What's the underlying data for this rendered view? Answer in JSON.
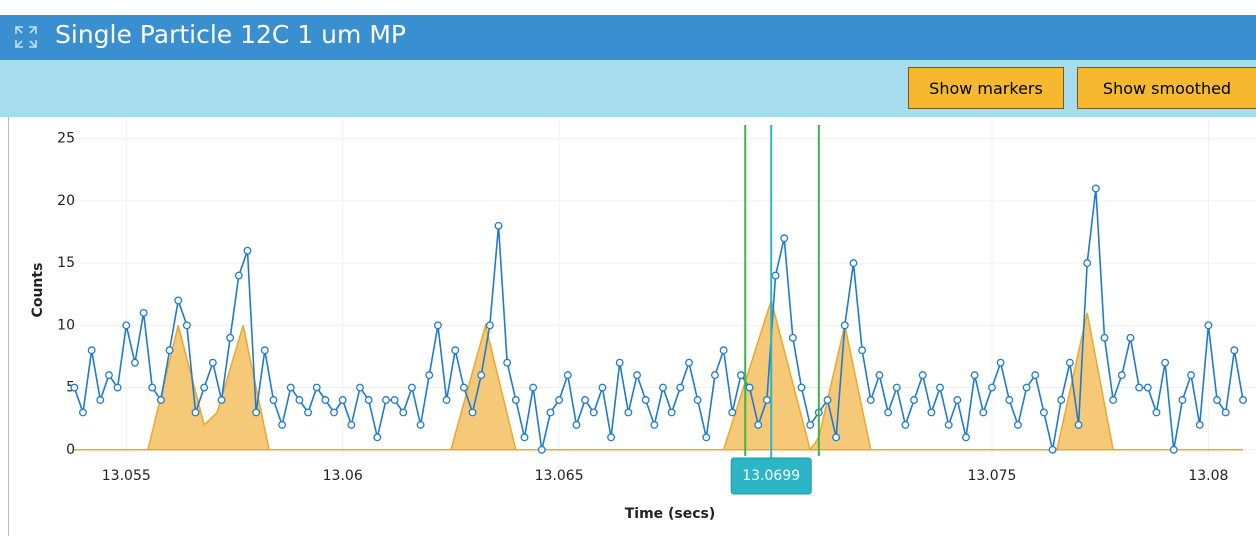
{
  "header": {
    "title": "Single Particle 12C 1 um MP"
  },
  "toolbar": {
    "buttons": [
      "Show markers",
      "Show smoothed"
    ]
  },
  "chart_data": {
    "type": "line",
    "x_label": "Time (secs)",
    "y_label": "Counts",
    "xlim": [
      13.0537,
      13.0811
    ],
    "xticks": [
      13.055,
      13.06,
      13.065,
      13.075,
      13.08
    ],
    "ylim": [
      -0.5,
      26.5
    ],
    "yticks": [
      0,
      5,
      10,
      15,
      20,
      25
    ],
    "grid": true,
    "series": [
      {
        "color": "#1f7bcf",
        "markers": true,
        "x": [
          13.0538,
          13.054,
          13.0542,
          13.0544,
          13.0546,
          13.0548,
          13.055,
          13.0552,
          13.0554,
          13.0556,
          13.0558,
          13.056,
          13.0562,
          13.0564,
          13.0566,
          13.0568,
          13.057,
          13.0572,
          13.0574,
          13.0576,
          13.0578,
          13.058,
          13.0582,
          13.0584,
          13.0586,
          13.0588,
          13.059,
          13.0592,
          13.0594,
          13.0596,
          13.0598,
          13.06,
          13.0602,
          13.0604,
          13.0606,
          13.0608,
          13.061,
          13.0612,
          13.0614,
          13.0616,
          13.0618,
          13.062,
          13.0622,
          13.0624,
          13.0626,
          13.0628,
          13.063,
          13.0632,
          13.0634,
          13.0636,
          13.0638,
          13.064,
          13.0642,
          13.0644,
          13.0646,
          13.0648,
          13.065,
          13.0652,
          13.0654,
          13.0656,
          13.0658,
          13.066,
          13.0662,
          13.0664,
          13.0666,
          13.0668,
          13.067,
          13.0672,
          13.0674,
          13.0676,
          13.0678,
          13.068,
          13.0682,
          13.0684,
          13.0686,
          13.0688,
          13.069,
          13.0692,
          13.0694,
          13.0696,
          13.0698,
          13.07,
          13.0702,
          13.0704,
          13.0706,
          13.0708,
          13.071,
          13.0712,
          13.0714,
          13.0716,
          13.0718,
          13.072,
          13.0722,
          13.0724,
          13.0726,
          13.0728,
          13.073,
          13.0732,
          13.0734,
          13.0736,
          13.0738,
          13.074,
          13.0742,
          13.0744,
          13.0746,
          13.0748,
          13.075,
          13.0752,
          13.0754,
          13.0756,
          13.0758,
          13.076,
          13.0762,
          13.0764,
          13.0766,
          13.0768,
          13.077,
          13.0772,
          13.0774,
          13.0776,
          13.0778,
          13.078,
          13.0782,
          13.0784,
          13.0786,
          13.0788,
          13.079,
          13.0792,
          13.0794,
          13.0796,
          13.0798,
          13.08,
          13.0802,
          13.0804,
          13.0806,
          13.0808
        ],
        "values": [
          5,
          3,
          8,
          4,
          6,
          5,
          10,
          7,
          11,
          5,
          4,
          8,
          12,
          10,
          3,
          5,
          7,
          4,
          9,
          14,
          16,
          3,
          8,
          4,
          2,
          5,
          4,
          3,
          5,
          4,
          3,
          4,
          2,
          5,
          4,
          1,
          4,
          4,
          3,
          5,
          2,
          6,
          10,
          4,
          8,
          5,
          3,
          6,
          10,
          18,
          7,
          4,
          1,
          5,
          0,
          3,
          4,
          6,
          2,
          4,
          3,
          5,
          1,
          7,
          3,
          6,
          4,
          2,
          5,
          3,
          5,
          7,
          4,
          1,
          6,
          8,
          3,
          6,
          5,
          2,
          4,
          14,
          17,
          9,
          5,
          2,
          3,
          4,
          1,
          10,
          15,
          8,
          4,
          6,
          3,
          5,
          2,
          4,
          6,
          3,
          5,
          2,
          4,
          1,
          6,
          3,
          5,
          7,
          4,
          2,
          5,
          6,
          3,
          0,
          4,
          7,
          2,
          15,
          21,
          9,
          4,
          6,
          9,
          5,
          5,
          3,
          7,
          0,
          4,
          6,
          2,
          10,
          4,
          3,
          8,
          4
        ]
      },
      {
        "color": "#f5c060",
        "fill": true,
        "x": [
          13.0538,
          13.0555,
          13.0562,
          13.0568,
          13.0571,
          13.0577,
          13.0583,
          13.0625,
          13.0633,
          13.064,
          13.0688,
          13.0699,
          13.0708,
          13.071,
          13.0716,
          13.0722,
          13.0765,
          13.0772,
          13.0778,
          13.0808
        ],
        "values": [
          0,
          0,
          10,
          2,
          3,
          10,
          0,
          0,
          10,
          0,
          0,
          12,
          0,
          1,
          10,
          0,
          0,
          11,
          0,
          0
        ]
      }
    ],
    "markers": [
      {
        "value": 13.0693,
        "color": "#3cb44b"
      },
      {
        "value": 13.071,
        "color": "#3cb44b"
      }
    ],
    "cursor": {
      "value": 13.0699,
      "color": "#2bb5c5"
    }
  }
}
